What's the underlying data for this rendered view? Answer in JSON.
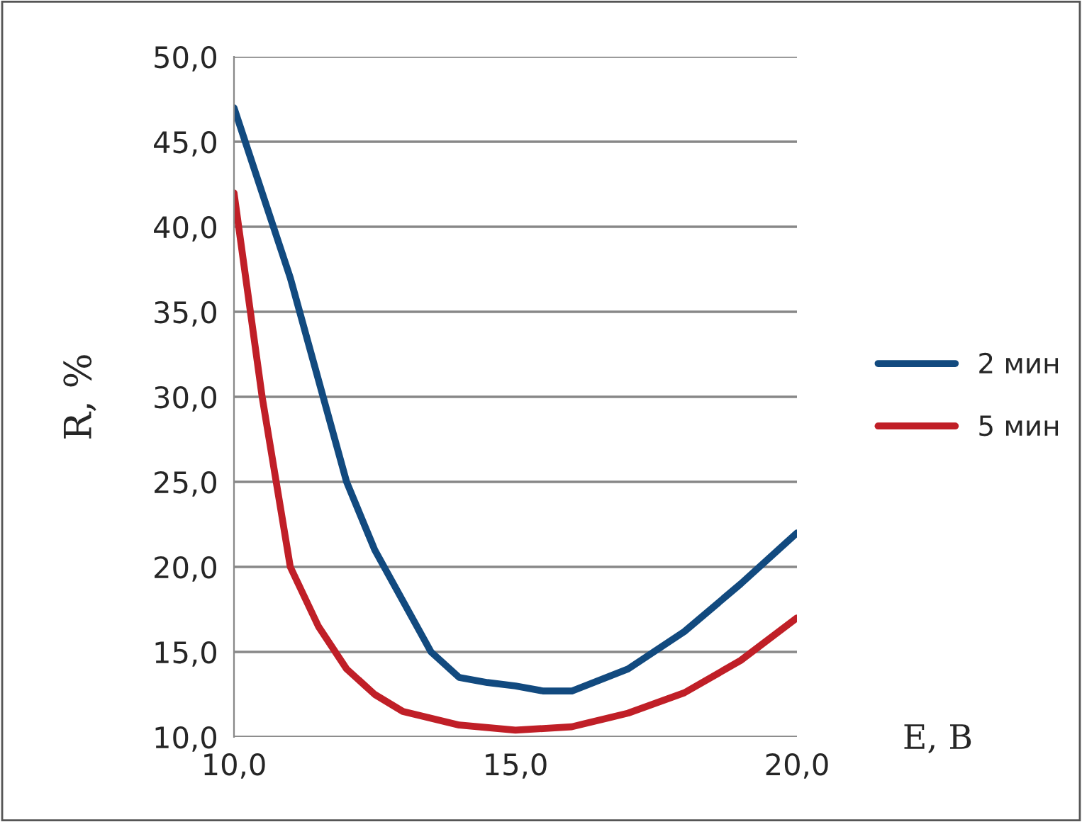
{
  "chart_data": {
    "type": "line",
    "xlabel": "E, B",
    "ylabel": "R, %",
    "xlim": [
      10,
      20
    ],
    "xticks": [
      {
        "value": 10,
        "label": "10,0"
      },
      {
        "value": 15,
        "label": "15,0"
      },
      {
        "value": 20,
        "label": "20,0"
      }
    ],
    "ylim": [
      10,
      50
    ],
    "yticks": [
      {
        "value": 10,
        "label": "10,0"
      },
      {
        "value": 15,
        "label": "15,0"
      },
      {
        "value": 20,
        "label": "20,0"
      },
      {
        "value": 25,
        "label": "25,0"
      },
      {
        "value": 30,
        "label": "30,0"
      },
      {
        "value": 35,
        "label": "35,0"
      },
      {
        "value": 40,
        "label": "40,0"
      },
      {
        "value": 45,
        "label": "45,0"
      },
      {
        "value": 50,
        "label": "50,0"
      }
    ],
    "grid": "y",
    "legend": "right",
    "marker": "none",
    "line_style": "solid",
    "series": [
      {
        "name": "2 мин",
        "color": "#124a7f",
        "x": [
          10,
          11,
          12,
          12.5,
          13,
          13.5,
          14,
          14.5,
          15,
          15.5,
          16,
          17,
          18,
          19,
          20
        ],
        "values": [
          47,
          37,
          25,
          21,
          18,
          15,
          13.5,
          13.2,
          13,
          12.7,
          12.7,
          14,
          16.2,
          19,
          22
        ]
      },
      {
        "name": "5 мин",
        "color": "#c01f27",
        "x": [
          10,
          10.5,
          11,
          11.5,
          12,
          12.5,
          13,
          14,
          15,
          16,
          17,
          18,
          19,
          20
        ],
        "values": [
          42,
          30,
          20,
          16.5,
          14,
          12.5,
          11.5,
          10.7,
          10.4,
          10.6,
          11.4,
          12.6,
          14.5,
          17
        ]
      }
    ]
  }
}
